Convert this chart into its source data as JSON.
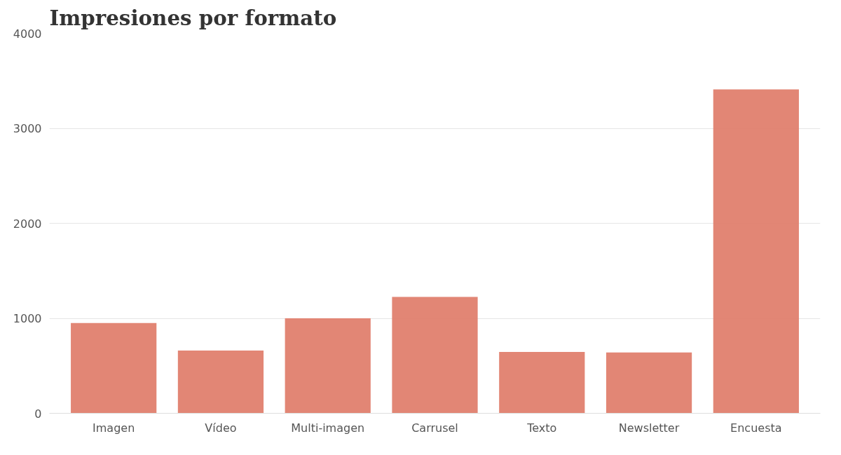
{
  "chart_data": {
    "type": "bar",
    "title": "Impresiones por formato",
    "categories": [
      "Imagen",
      "Vídeo",
      "Multi-imagen",
      "Carrusel",
      "Texto",
      "Newsletter",
      "Encuesta"
    ],
    "values": [
      950,
      660,
      1000,
      1225,
      645,
      640,
      3410
    ],
    "color": "#e07f6e",
    "ylim": [
      0,
      4000
    ],
    "yticks": [
      0,
      1000,
      2000,
      3000,
      4000
    ],
    "grid": "y"
  }
}
